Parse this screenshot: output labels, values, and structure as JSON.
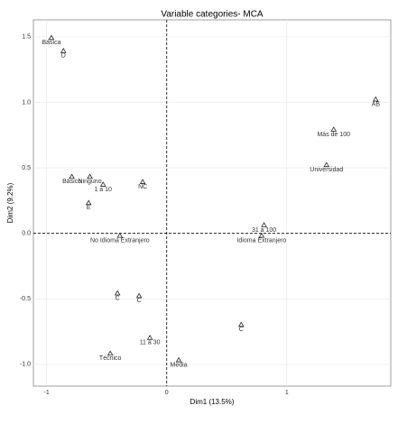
{
  "chart_data": {
    "type": "scatter",
    "title": "Variable categories- MCA",
    "x_label": "Dim1 (13.5%)",
    "y_label": "Dim2 (9.2%)",
    "xlim": [
      -1.11,
      1.865
    ],
    "ylim": [
      -1.166,
      1.63
    ],
    "xticks": [
      -1,
      0,
      1
    ],
    "yticks": [
      {
        "value": -1,
        "label": "-1.0"
      },
      -0.5,
      {
        "value": 0,
        "label": "0.0"
      },
      0.5,
      {
        "value": 1,
        "label": "1.0"
      },
      1.5
    ],
    "grid": true,
    "color": "#222222",
    "series": [
      {
        "labels": [
          "Básica",
          "D",
          "AB",
          "Más de 100",
          "Universidad",
          "Básico",
          "Ninguno",
          "1 a 10",
          "NC",
          "E",
          "31 a 100",
          "Idioma Extranjero",
          "No Idioma Extranjero",
          "C",
          "C",
          "C",
          "11 a 30",
          "Técnico",
          "Media"
        ],
        "x": [
          -0.96,
          -0.86,
          1.74,
          1.39,
          1.33,
          -0.79,
          -0.64,
          -0.53,
          -0.2,
          -0.65,
          0.81,
          0.79,
          -0.39,
          -0.41,
          -0.23,
          0.62,
          -0.14,
          -0.47,
          0.1
        ],
        "values": [
          1.49,
          1.39,
          1.02,
          0.79,
          0.52,
          0.43,
          0.43,
          0.37,
          0.39,
          0.23,
          0.06,
          -0.02,
          -0.02,
          -0.46,
          -0.48,
          -0.7,
          -0.8,
          -0.92,
          -0.97
        ]
      }
    ]
  }
}
